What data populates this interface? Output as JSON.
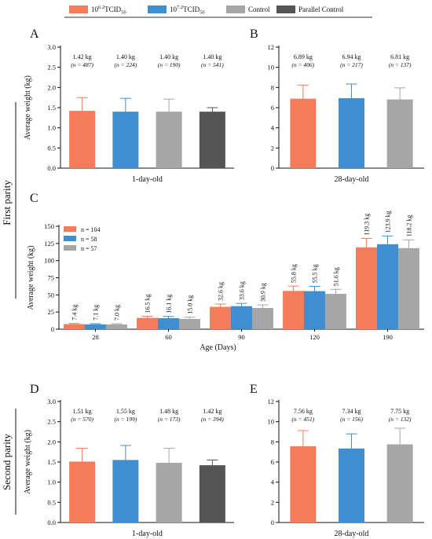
{
  "legend": {
    "items": [
      {
        "base": "10",
        "exp": "6.2",
        "label": "TCID",
        "sub": "50",
        "color": "#F47C5A"
      },
      {
        "base": "10",
        "exp": "7.2",
        "label": "TCID",
        "sub": "50",
        "color": "#3F8ED0"
      },
      {
        "label": "Control",
        "color": "#A6A6A6"
      },
      {
        "label": "Parallel Control",
        "color": "#555555"
      }
    ]
  },
  "parity_labels": {
    "first": "First parity",
    "second": "Second parity"
  },
  "chart_data": [
    {
      "id": "A",
      "panel_label": "A",
      "type": "bar",
      "categories": [
        "10^6.2 TCID50",
        "10^7.2 TCID50",
        "Control",
        "Parallel Control"
      ],
      "values": [
        1.42,
        1.4,
        1.4,
        1.4
      ],
      "errors": [
        0.33,
        0.33,
        0.31,
        0.1
      ],
      "colors": [
        "#F47C5A",
        "#3F8ED0",
        "#A6A6A6",
        "#555555"
      ],
      "weight_labels": [
        "1.42 kg",
        "1.40 kg",
        "1.40 kg",
        "1.40 kg"
      ],
      "n_labels": [
        "(n = 487)",
        "(n = 224)",
        "(n = 190)",
        "(n = 541)"
      ],
      "xlabel": "1-day-old",
      "ylabel": "Average weight (kg)",
      "ylim": [
        0,
        3.0
      ],
      "yticks": [
        "0.0",
        "0.5",
        "1.0",
        "1.5",
        "2.0",
        "2.5",
        "3.0"
      ]
    },
    {
      "id": "B",
      "panel_label": "B",
      "type": "bar",
      "categories": [
        "10^6.2 TCID50",
        "10^7.2 TCID50",
        "Control"
      ],
      "values": [
        6.89,
        6.94,
        6.81
      ],
      "errors": [
        1.35,
        1.4,
        1.15
      ],
      "colors": [
        "#F47C5A",
        "#3F8ED0",
        "#A6A6A6"
      ],
      "weight_labels": [
        "6.89 kg",
        "6.94 kg",
        "6.81 kg"
      ],
      "n_labels": [
        "(n = 406)",
        "(n = 217)",
        "(n = 137)"
      ],
      "xlabel": "28-day-old",
      "ylabel": "",
      "ylim": [
        0,
        12
      ],
      "yticks": [
        "0",
        "2",
        "4",
        "6",
        "8",
        "10",
        "12"
      ]
    },
    {
      "id": "C",
      "panel_label": "C",
      "type": "bar",
      "categories": [
        "28",
        "60",
        "90",
        "120",
        "190"
      ],
      "series": [
        {
          "name": "n = 104",
          "color": "#F47C5A",
          "values": [
            7.4,
            16.5,
            32.6,
            55.8,
            119.3
          ],
          "errors": [
            1.0,
            2.5,
            4.0,
            7.0,
            13.0
          ],
          "labels": [
            "7.4 kg",
            "16.5 kg",
            "32.6 kg",
            "55.8 kg",
            "119.3 kg"
          ]
        },
        {
          "name": "n = 58",
          "color": "#3F8ED0",
          "values": [
            7.1,
            16.1,
            33.6,
            55.5,
            123.9
          ],
          "errors": [
            1.0,
            2.5,
            4.0,
            7.0,
            12.0
          ],
          "labels": [
            "7.1 kg",
            "16.1 kg",
            "33.6 kg",
            "55.5 kg",
            "123.9 kg"
          ]
        },
        {
          "name": "n = 57",
          "color": "#A6A6A6",
          "values": [
            7.0,
            15.0,
            30.9,
            51.6,
            118.2
          ],
          "errors": [
            1.0,
            2.5,
            4.5,
            6.5,
            12.0
          ],
          "labels": [
            "7.0 kg",
            "15.0 kg",
            "30.9 kg",
            "51.6 kg",
            "118.2 kg"
          ]
        }
      ],
      "xlabel": "Age (Days)",
      "ylabel": "Average weight (kg)",
      "ylim": [
        0,
        150
      ],
      "yticks": [
        "0",
        "25",
        "50",
        "75",
        "100",
        "125",
        "150"
      ],
      "legend_position": "top-left"
    },
    {
      "id": "D",
      "panel_label": "D",
      "type": "bar",
      "categories": [
        "10^6.2 TCID50",
        "10^7.2 TCID50",
        "Control",
        "Parallel Control"
      ],
      "values": [
        1.51,
        1.55,
        1.48,
        1.42
      ],
      "errors": [
        0.33,
        0.36,
        0.36,
        0.13
      ],
      "colors": [
        "#F47C5A",
        "#3F8ED0",
        "#A6A6A6",
        "#555555"
      ],
      "weight_labels": [
        "1.51 kg",
        "1.55 kg",
        "1.48 kg",
        "1.42 kg"
      ],
      "n_labels": [
        "(n = 570)",
        "(n = 199)",
        "(n = 173)",
        "(n = 394)"
      ],
      "xlabel": "1-day-old",
      "ylabel": "Average weight (kg)",
      "ylim": [
        0,
        3.0
      ],
      "yticks": [
        "0.0",
        "0.5",
        "1.0",
        "1.5",
        "2.0",
        "2.5",
        "3.0"
      ]
    },
    {
      "id": "E",
      "panel_label": "E",
      "type": "bar",
      "categories": [
        "10^6.2 TCID50",
        "10^7.2 TCID50",
        "Control"
      ],
      "values": [
        7.56,
        7.34,
        7.75
      ],
      "errors": [
        1.55,
        1.45,
        1.6
      ],
      "colors": [
        "#F47C5A",
        "#3F8ED0",
        "#A6A6A6"
      ],
      "weight_labels": [
        "7.56 kg",
        "7.34 kg",
        "7.75 kg"
      ],
      "n_labels": [
        "(n = 451)",
        "(n = 156)",
        "(n = 132)"
      ],
      "xlabel": "28-day-old",
      "ylabel": "",
      "ylim": [
        0,
        12
      ],
      "yticks": [
        "0",
        "2",
        "4",
        "6",
        "8",
        "10",
        "12"
      ]
    }
  ]
}
